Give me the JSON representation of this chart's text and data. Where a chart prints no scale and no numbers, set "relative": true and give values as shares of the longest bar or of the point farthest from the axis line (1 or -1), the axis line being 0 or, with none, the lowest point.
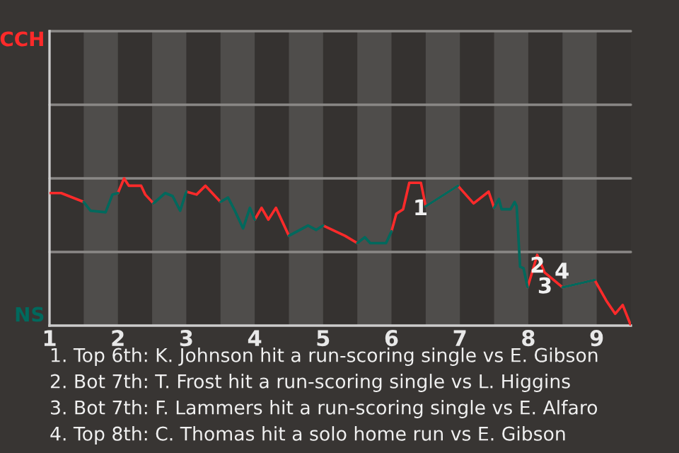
{
  "chart_data": {
    "type": "line",
    "relative": true,
    "x": [
      1.0,
      1.17,
      1.5,
      1.6,
      1.82,
      1.92,
      2.0,
      2.09,
      2.16,
      2.34,
      2.4,
      2.52,
      2.69,
      2.8,
      2.91,
      3.0,
      3.15,
      3.28,
      3.5,
      3.61,
      3.71,
      3.83,
      3.93,
      4.0,
      4.1,
      4.2,
      4.31,
      4.5,
      4.78,
      4.9,
      5.0,
      5.32,
      5.5,
      5.61,
      5.69,
      5.92,
      6.0,
      6.07,
      6.17,
      6.26,
      6.43,
      6.5,
      6.97,
      7.2,
      7.42,
      7.5,
      7.57,
      7.61,
      7.74,
      7.8,
      7.83,
      7.88,
      7.93,
      7.99,
      8.13,
      8.24,
      8.5,
      8.97,
      9.14,
      9.27,
      9.38,
      9.5
    ],
    "xlim": [
      1,
      9.5
    ],
    "xticks": [
      1,
      2,
      3,
      4,
      5,
      6,
      7,
      8,
      9
    ],
    "series": [
      {
        "name": "CCH",
        "color": "#ff2a2a",
        "values": [
          0.9,
          0.9,
          0.84,
          null,
          null,
          null,
          0.9,
          1,
          0.95,
          0.95,
          0.89,
          0.83,
          null,
          null,
          null,
          0.91,
          0.89,
          0.95,
          0.84,
          null,
          null,
          null,
          null,
          0.72,
          0.8,
          0.72,
          0.8,
          0.61,
          null,
          null,
          0.68,
          0.61,
          0.56,
          null,
          null,
          null,
          0.64,
          0.76,
          0.79,
          0.97,
          0.97,
          0.81,
          0.95,
          0.83,
          0.91,
          0.8,
          null,
          null,
          null,
          null,
          null,
          null,
          null,
          0.26,
          0.48,
          0.36,
          0.26,
          0.31,
          0.17,
          0.08,
          0.14,
          0
        ]
      },
      {
        "name": "NS",
        "color": "#00695d",
        "values": [
          null,
          null,
          0.84,
          0.78,
          0.77,
          0.89,
          0.9,
          null,
          null,
          null,
          null,
          0.83,
          0.9,
          0.88,
          0.78,
          0.91,
          null,
          null,
          0.84,
          0.87,
          0.78,
          0.66,
          0.8,
          0.72,
          null,
          null,
          null,
          0.61,
          0.68,
          0.65,
          0.68,
          null,
          0.56,
          0.6,
          0.56,
          0.56,
          0.64,
          null,
          null,
          null,
          null,
          0.81,
          0.95,
          null,
          null,
          0.8,
          0.86,
          0.79,
          0.79,
          0.84,
          0.81,
          0.4,
          0.39,
          0.26,
          null,
          null,
          0.26,
          0.31,
          null,
          null,
          null,
          null
        ]
      }
    ],
    "ref_lines": [
      {
        "axis": "y",
        "value": 0.5,
        "color": "#8a8886"
      },
      {
        "axis": "y",
        "value": 1,
        "color": "#8a8886"
      },
      {
        "axis": "y",
        "value": 1.5,
        "color": "#8a8886"
      },
      {
        "axis": "y",
        "value": 2,
        "color": "#8a8886"
      }
    ],
    "bands": [
      {
        "axis": "x",
        "from": 1.5,
        "to": 2,
        "color": "#4f4d4b"
      },
      {
        "axis": "x",
        "from": 2.5,
        "to": 3,
        "color": "#4f4d4b"
      },
      {
        "axis": "x",
        "from": 3.5,
        "to": 4,
        "color": "#4f4d4b"
      },
      {
        "axis": "x",
        "from": 4.5,
        "to": 5,
        "color": "#4f4d4b"
      },
      {
        "axis": "x",
        "from": 5.5,
        "to": 6,
        "color": "#4f4d4b"
      },
      {
        "axis": "x",
        "from": 6.5,
        "to": 7,
        "color": "#4f4d4b"
      },
      {
        "axis": "x",
        "from": 7.5,
        "to": 8,
        "color": "#4f4d4b"
      },
      {
        "axis": "x",
        "from": 8.5,
        "to": 9,
        "color": "#4f4d4b"
      }
    ],
    "annotations": [
      {
        "text": "1",
        "x": 6.17,
        "y": 0.79
      },
      {
        "text": "2",
        "x": 7.88,
        "y": 0.4
      },
      {
        "text": "3",
        "x": 7.99,
        "y": 0.26
      },
      {
        "text": "4",
        "x": 8.24,
        "y": 0.36
      },
      "1. Top 6th: K. Johnson hit a run-scoring single vs E. Gibson",
      "2. Bot 7th: T. Frost hit a run-scoring single vs L. Higgins",
      "3. Bot 7th: F. Lammers hit a run-scoring single vs E. Alfaro",
      "4. Top 8th: C. Thomas hit a solo home run vs E. Gibson"
    ]
  }
}
